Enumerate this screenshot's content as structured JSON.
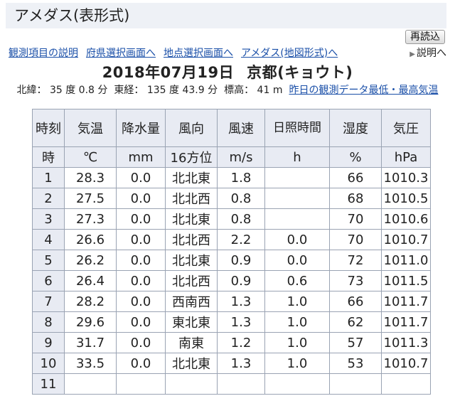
{
  "page": {
    "title": "アメダス(表形式)",
    "reload_label": "再読込",
    "help_label": "説明へ"
  },
  "nav": [
    "観測項目の説明",
    "府県選択画面へ",
    "地点選択画面へ",
    "アメダス(地図形式)へ"
  ],
  "heading": {
    "date": "2018年07月19日",
    "station": "京都(キョウト)"
  },
  "station_info": {
    "lat": "北緯： 35 度 0.8 分",
    "lon": "東経： 135 度 43.9 分",
    "elev": "標高： 41 m",
    "prev_link": "昨日の観測データ",
    "extreme_link": "最低・最高気温"
  },
  "table": {
    "headers": [
      "時刻",
      "気温",
      "降水量",
      "風向",
      "風速",
      "日照時間",
      "湿度",
      "気圧"
    ],
    "units": [
      "時",
      "℃",
      "mm",
      "16方位",
      "m/s",
      "h",
      "%",
      "hPa"
    ],
    "rows": [
      [
        "1",
        "28.3",
        "0.0",
        "北北東",
        "1.8",
        "",
        "66",
        "1010.3"
      ],
      [
        "2",
        "27.5",
        "0.0",
        "北北西",
        "0.8",
        "",
        "68",
        "1010.5"
      ],
      [
        "3",
        "27.3",
        "0.0",
        "北北東",
        "0.8",
        "",
        "70",
        "1010.6"
      ],
      [
        "4",
        "26.6",
        "0.0",
        "北北西",
        "2.2",
        "0.0",
        "70",
        "1010.7"
      ],
      [
        "5",
        "26.2",
        "0.0",
        "北北東",
        "0.9",
        "0.0",
        "72",
        "1011.0"
      ],
      [
        "6",
        "26.4",
        "0.0",
        "北北西",
        "0.9",
        "0.6",
        "73",
        "1011.5"
      ],
      [
        "7",
        "28.2",
        "0.0",
        "西南西",
        "1.3",
        "1.0",
        "66",
        "1011.7"
      ],
      [
        "8",
        "29.6",
        "0.0",
        "東北東",
        "1.3",
        "1.0",
        "62",
        "1011.7"
      ],
      [
        "9",
        "31.7",
        "0.0",
        "南東",
        "1.2",
        "1.0",
        "57",
        "1011.3"
      ],
      [
        "10",
        "33.5",
        "0.0",
        "北北東",
        "1.3",
        "1.0",
        "53",
        "1010.7"
      ],
      [
        "11",
        "",
        "",
        "",
        "",
        "",
        "",
        ""
      ]
    ]
  }
}
